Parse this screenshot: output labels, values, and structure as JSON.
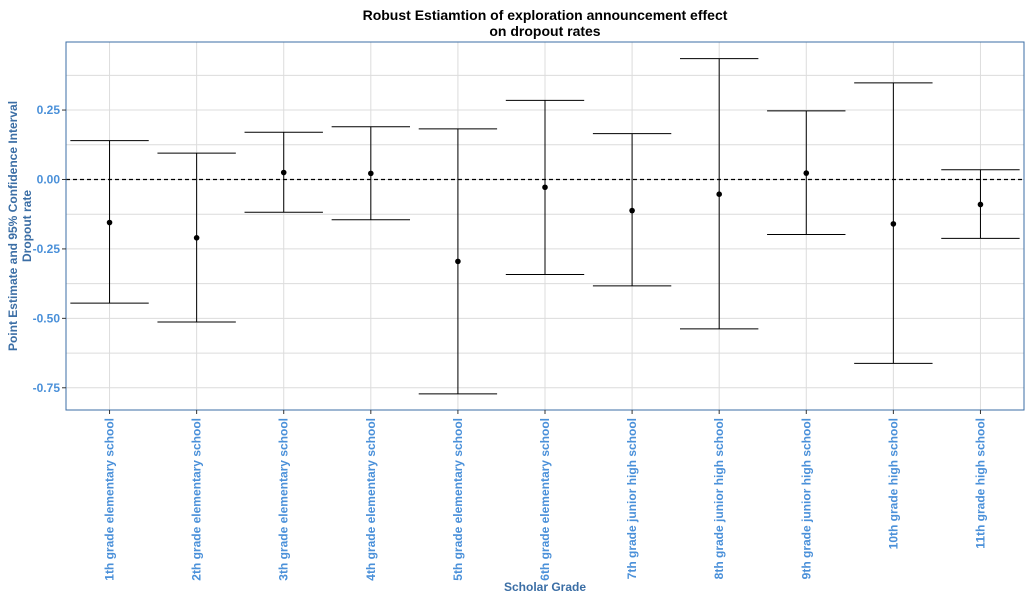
{
  "chart_data": {
    "type": "errorbar",
    "title_lines": [
      "Robust Estiamtion of exploration announcement effect",
      "on dropout rates"
    ],
    "xlabel": "Scholar Grade",
    "ylabel_lines": [
      "Point Estimate and 95% Confidence Interval",
      "Dropout rate"
    ],
    "ylim": [
      -0.83,
      0.495
    ],
    "y_ticks": [
      -0.75,
      -0.5,
      -0.25,
      0.0,
      0.25
    ],
    "y_tick_labels": [
      "-0.75",
      "-0.50",
      "-0.25",
      "0.00",
      "0.25"
    ],
    "reference_line": 0.0,
    "grid": true,
    "categories": [
      "1th grade elementary school",
      "2th grade elementary school",
      "3th grade elementary school",
      "4th grade elementary school",
      "5th grade elementary school",
      "6th grade elementary school",
      "7th grade junior high school",
      "8th grade junior high school",
      "9th grade junior high school",
      "10th grade high school",
      "11th grade high school"
    ],
    "estimates": [
      -0.155,
      -0.21,
      0.025,
      0.022,
      -0.295,
      -0.028,
      -0.112,
      -0.053,
      0.023,
      -0.16,
      -0.09
    ],
    "lower": [
      -0.445,
      -0.513,
      -0.118,
      -0.145,
      -0.772,
      -0.342,
      -0.383,
      -0.538,
      -0.198,
      -0.662,
      -0.212
    ],
    "upper": [
      0.14,
      0.095,
      0.17,
      0.19,
      0.182,
      0.285,
      0.165,
      0.435,
      0.247,
      0.348,
      0.035
    ],
    "colors": {
      "axis_title": "#3b6ea5",
      "tick_label": "#4a90d9",
      "border": "#3b6ea5",
      "grid": "#dcdcdc",
      "marks": "#000000"
    }
  }
}
